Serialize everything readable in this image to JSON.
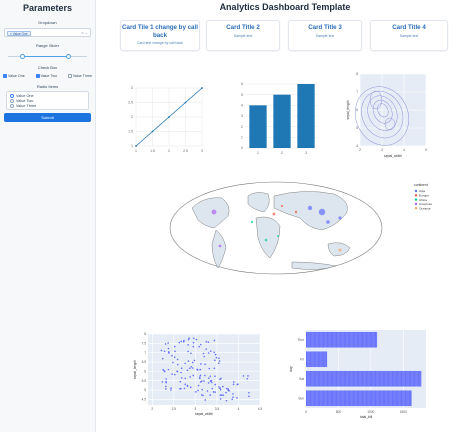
{
  "sidebar": {
    "title": "Parameters",
    "dropdown_label": "Dropdown",
    "dropdown_tag": "× Value One",
    "dropdown_icons": "× ⌄",
    "range_label": "Range Slider",
    "range_value": [
      0.2,
      0.75
    ],
    "check_label": "Check Box",
    "checks": [
      {
        "label": "Value One",
        "checked": true
      },
      {
        "label": "Value Two",
        "checked": true
      },
      {
        "label": "Value Three",
        "checked": false
      }
    ],
    "radio_label": "Radio Items",
    "radios": [
      {
        "label": "Value One",
        "selected": true
      },
      {
        "label": "Value Two",
        "selected": false
      },
      {
        "label": "Value Three",
        "selected": false
      }
    ],
    "submit_label": "Submit"
  },
  "main": {
    "title": "Analytics Dashboard Template",
    "cards": [
      {
        "title": "Card Tile 1 change by call back",
        "text": "Card text change by call back"
      },
      {
        "title": "Card Title 2",
        "text": "Sample text"
      },
      {
        "title": "Card Title 3",
        "text": "Sample text"
      },
      {
        "title": "Card Title 4",
        "text": "Sample text"
      }
    ]
  },
  "colors": {
    "accent": "#1d74e0",
    "bar": "#1f77b4",
    "plotly_bg": "#e5ecf6",
    "scatter": "#636efa"
  },
  "chart_data": [
    {
      "type": "line",
      "x": [
        1,
        1.5,
        2,
        2.5,
        3
      ],
      "y": [
        1,
        1.5,
        2,
        2.5,
        3
      ],
      "xticks": [
        "1",
        "1.5",
        "2",
        "2.5",
        "3"
      ],
      "yticks": [
        "1",
        "1.5",
        "2",
        "2.5",
        "3"
      ],
      "color": "#1f77b4"
    },
    {
      "type": "bar",
      "categories": [
        "1",
        "2",
        "3"
      ],
      "values": [
        4,
        5,
        6
      ],
      "yticks": [
        "0",
        "1",
        "2",
        "3",
        "4",
        "5",
        "6"
      ],
      "color": "#1f77b4"
    },
    {
      "type": "contour",
      "xlabel": "sepal_width",
      "ylabel": "sepal_length",
      "xticks": [
        "2",
        "3",
        "4",
        "5"
      ],
      "yticks": [
        "4",
        "5",
        "6",
        "7",
        "8"
      ]
    },
    {
      "type": "scatter_geo",
      "legend_title": "continent",
      "legend": [
        "Asia",
        "Europe",
        "Africa",
        "Americas",
        "Oceania"
      ],
      "legend_colors": [
        "#636efa",
        "#ef553b",
        "#00cc96",
        "#ab63fa",
        "#ffa15a"
      ]
    },
    {
      "type": "scatter",
      "xlabel": "sepal_width",
      "ylabel": "sepal_length",
      "xticks": [
        "2",
        "2.5",
        "3",
        "3.5",
        "4",
        "4.5"
      ],
      "yticks": [
        "4.5",
        "5",
        "5.5",
        "6",
        "6.5",
        "7",
        "7.5",
        "8"
      ],
      "xlim": [
        1.9,
        4.5
      ],
      "ylim": [
        4.2,
        8.0
      ]
    },
    {
      "type": "bar_horizontal",
      "xlabel": "total_bill",
      "ylabel": "day",
      "categories": [
        "Thur",
        "Fri",
        "Sat",
        "Sun"
      ],
      "values": [
        1096,
        325,
        1778,
        1627
      ],
      "xticks": [
        "0",
        "500",
        "1000",
        "1500"
      ],
      "xlim": [
        0,
        1850
      ]
    }
  ]
}
